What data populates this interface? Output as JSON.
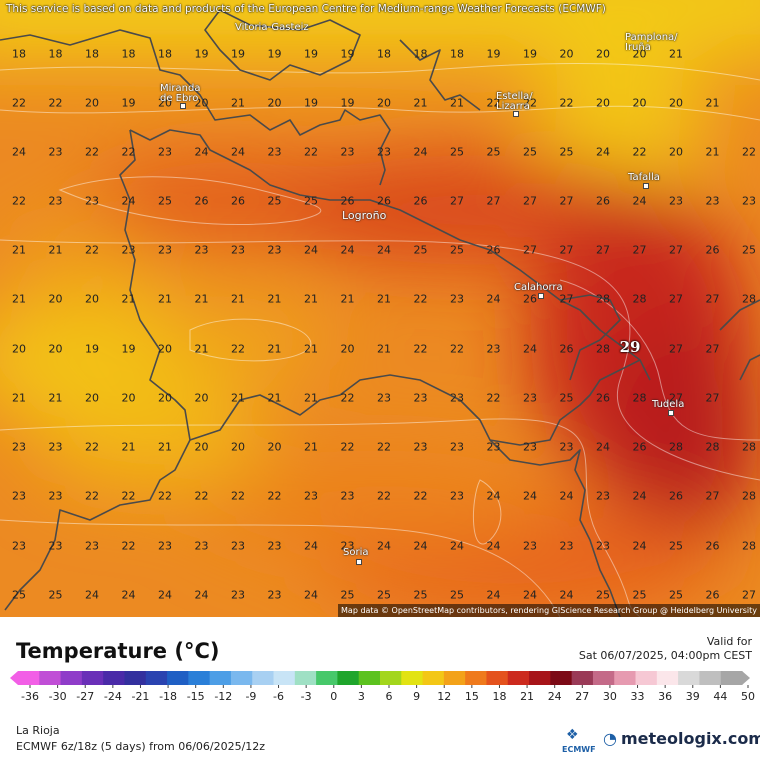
{
  "attribution_top": "This service is based on data and products of the European Centre for Medium-range Weather Forecasts (ECMWF)",
  "attribution_bottom": "Map data © OpenStreetMap contributors, rendering GIScience Research Group @ Heidelberg University",
  "title": "Temperature (°C)",
  "valid_label": "Valid for",
  "valid_time": "Sat 06/07/2025, 04:00pm CEST",
  "region": "La Rioja",
  "model": "ECMWF 6z/18z (5 days) from 06/06/2025/12z",
  "ecmwf_logo": "ECMWF",
  "brand": "meteologix.com",
  "brand_icon": "meteologix-logo-icon",
  "legend_ticks": [
    "-36",
    "-30",
    "-27",
    "-24",
    "-21",
    "-18",
    "-15",
    "-12",
    "-9",
    "-6",
    "-3",
    "0",
    "3",
    "6",
    "9",
    "12",
    "15",
    "18",
    "21",
    "24",
    "27",
    "30",
    "33",
    "36",
    "39",
    "44",
    "50"
  ],
  "legend_colors": [
    "#f25fe6",
    "#c04ed6",
    "#8f3cc9",
    "#6a2fb8",
    "#4a2aa8",
    "#33309e",
    "#2a43b0",
    "#1f5fc4",
    "#2a7fd8",
    "#4d9ee6",
    "#7ab8ee",
    "#a8d0f2",
    "#c8e4f6",
    "#9fe0c4",
    "#47c86a",
    "#1fa52c",
    "#5cc21f",
    "#a3d61c",
    "#e2e313",
    "#f3c716",
    "#f3a219",
    "#ef7a1c",
    "#e4521d",
    "#cc2a1e",
    "#a71419",
    "#7c0a16",
    "#9a3a57",
    "#c46a88",
    "#e69ab0",
    "#f6c8d4",
    "#fbe6ea",
    "#d9d9d9",
    "#bfbfbf",
    "#a6a6a6"
  ],
  "max_value": "29",
  "cities": [
    {
      "name": "Vitoria-Gasteiz"
    },
    {
      "name": "Pamplona/ Iruña"
    },
    {
      "name": "Miranda de Ebro"
    },
    {
      "name": "Estella/ Lizarra"
    },
    {
      "name": "Tafalla"
    },
    {
      "name": "Logroño"
    },
    {
      "name": "Calahorra"
    },
    {
      "name": "Tudela"
    },
    {
      "name": "Soria"
    }
  ],
  "grid_values": [
    [
      "18",
      "18",
      "18",
      "18",
      "18",
      "19",
      "19",
      "19",
      "19",
      "19",
      "18",
      "18",
      "18",
      "19",
      "19",
      "20",
      "20",
      "20",
      "21"
    ],
    [
      "22",
      "22",
      "20",
      "19",
      "20",
      "20",
      "21",
      "20",
      "19",
      "19",
      "20",
      "21",
      "21",
      "22",
      "22",
      "22",
      "20",
      "20",
      "20",
      "21"
    ],
    [
      "24",
      "23",
      "22",
      "22",
      "23",
      "24",
      "24",
      "23",
      "22",
      "23",
      "23",
      "24",
      "25",
      "25",
      "25",
      "25",
      "24",
      "22",
      "20",
      "21",
      "22"
    ],
    [
      "22",
      "23",
      "23",
      "24",
      "25",
      "26",
      "26",
      "25",
      "25",
      "26",
      "26",
      "26",
      "27",
      "27",
      "27",
      "27",
      "26",
      "24",
      "23",
      "23",
      "23"
    ],
    [
      "21",
      "21",
      "22",
      "23",
      "23",
      "23",
      "23",
      "23",
      "24",
      "24",
      "24",
      "25",
      "25",
      "26",
      "27",
      "27",
      "27",
      "27",
      "27",
      "26",
      "25"
    ],
    [
      "21",
      "20",
      "20",
      "21",
      "21",
      "21",
      "21",
      "21",
      "21",
      "21",
      "21",
      "22",
      "23",
      "24",
      "26",
      "27",
      "28",
      "28",
      "27",
      "27",
      "28"
    ],
    [
      "20",
      "20",
      "19",
      "19",
      "20",
      "21",
      "22",
      "21",
      "21",
      "20",
      "21",
      "22",
      "22",
      "23",
      "24",
      "26",
      "28",
      "28",
      "27",
      "27"
    ],
    [
      "21",
      "21",
      "20",
      "20",
      "20",
      "20",
      "21",
      "21",
      "21",
      "22",
      "23",
      "23",
      "23",
      "22",
      "23",
      "25",
      "26",
      "28",
      "27",
      "27"
    ],
    [
      "23",
      "23",
      "22",
      "21",
      "21",
      "20",
      "20",
      "20",
      "21",
      "22",
      "22",
      "23",
      "23",
      "23",
      "23",
      "23",
      "24",
      "26",
      "28",
      "28",
      "28"
    ],
    [
      "23",
      "23",
      "22",
      "22",
      "22",
      "22",
      "22",
      "22",
      "23",
      "23",
      "22",
      "22",
      "23",
      "24",
      "24",
      "24",
      "23",
      "24",
      "26",
      "27",
      "28"
    ],
    [
      "23",
      "23",
      "23",
      "22",
      "23",
      "23",
      "23",
      "23",
      "24",
      "23",
      "24",
      "24",
      "24",
      "24",
      "23",
      "23",
      "23",
      "24",
      "25",
      "26",
      "28"
    ],
    [
      "25",
      "25",
      "24",
      "24",
      "24",
      "24",
      "23",
      "23",
      "24",
      "25",
      "25",
      "25",
      "25",
      "24",
      "24",
      "24",
      "25",
      "25",
      "25",
      "26",
      "27"
    ]
  ]
}
